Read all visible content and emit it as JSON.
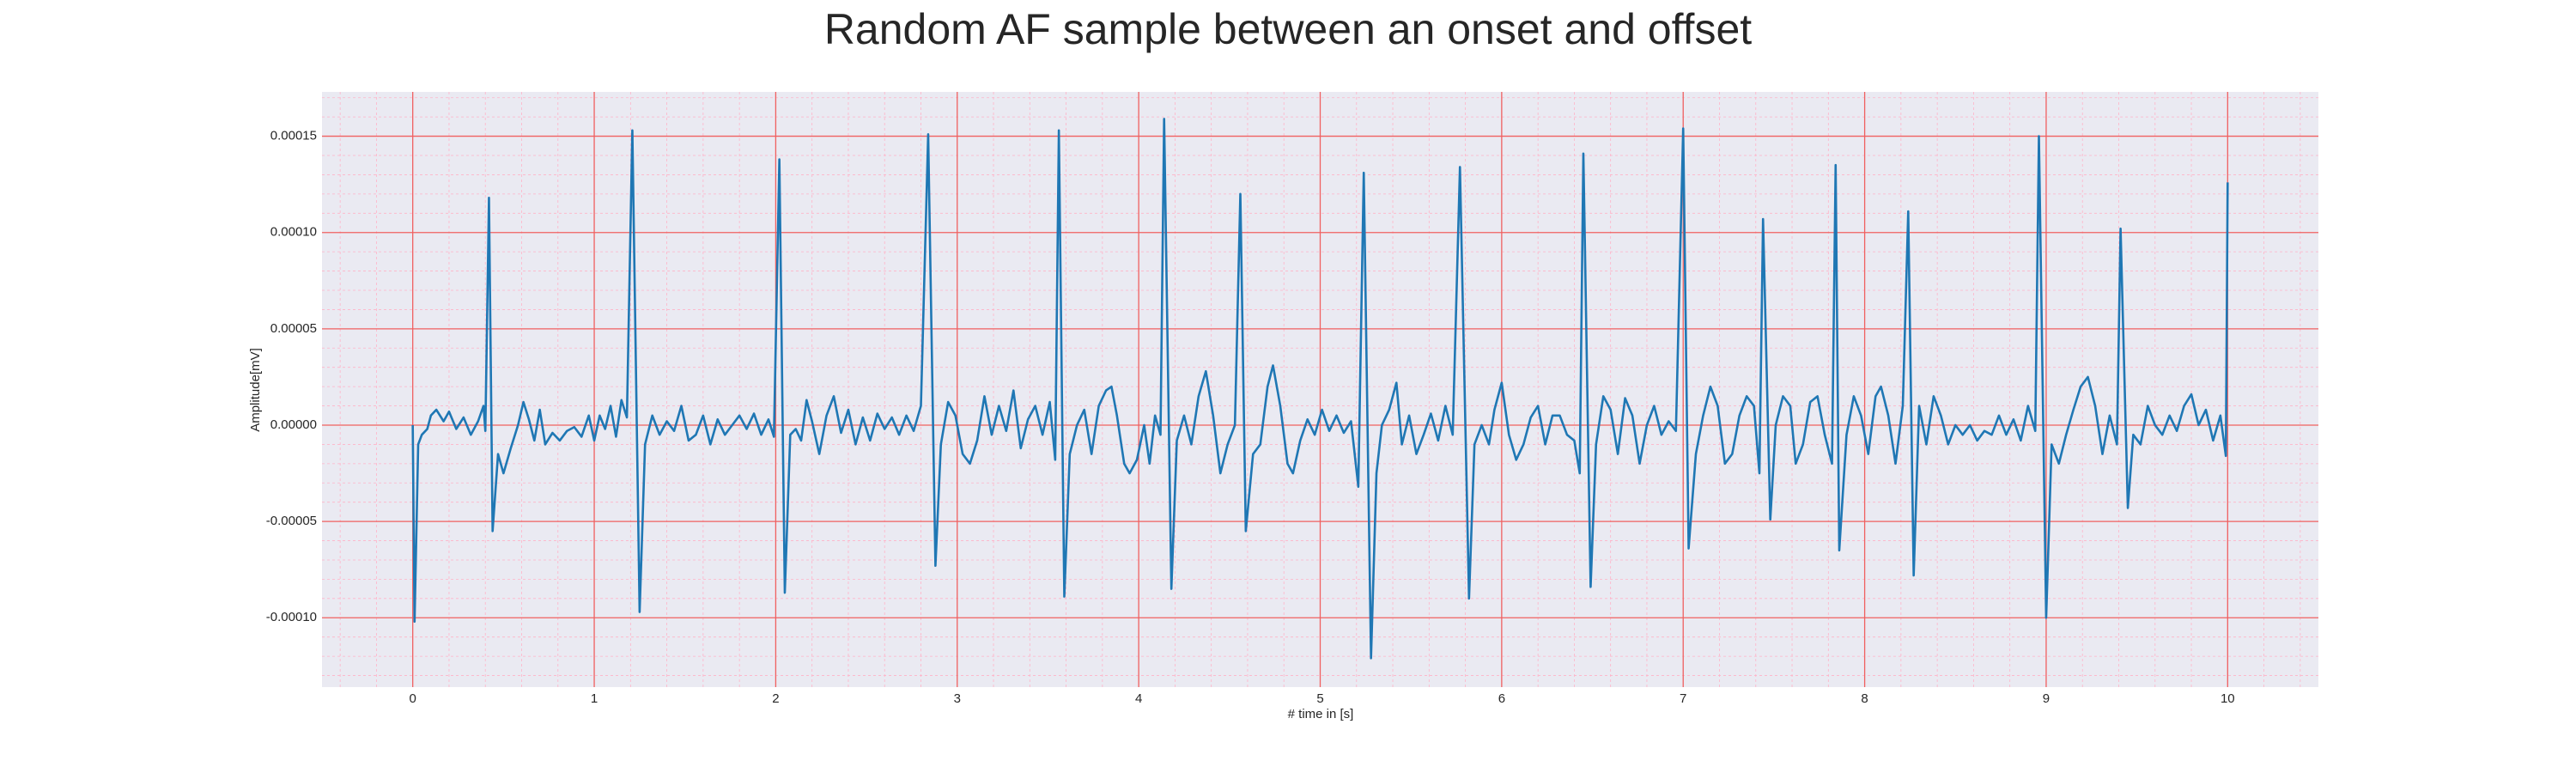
{
  "chart_data": {
    "type": "line",
    "title": "Random AF sample between an onset and offset",
    "xlabel": "# time in [s]",
    "ylabel": "Amplitude[mV]",
    "xlim": [
      -0.5,
      10.5
    ],
    "ylim": [
      -0.000136,
      0.000173
    ],
    "xticks": [
      0,
      1,
      2,
      3,
      4,
      5,
      6,
      7,
      8,
      9,
      10
    ],
    "yticks": [
      {
        "value": -0.0001,
        "label": "-0.00010"
      },
      {
        "value": -5e-05,
        "label": "-0.00005"
      },
      {
        "value": 0,
        "label": "0.00000"
      },
      {
        "value": 5e-05,
        "label": "0.00005"
      },
      {
        "value": 0.0001,
        "label": "0.00010"
      },
      {
        "value": 0.00015,
        "label": "0.00015"
      }
    ],
    "grid": true,
    "minor_grid": true,
    "x": [
      0,
      0.01,
      0.03,
      0.05,
      0.08,
      0.1,
      0.13,
      0.17,
      0.2,
      0.24,
      0.28,
      0.32,
      0.36,
      0.39,
      0.4,
      0.42,
      0.44,
      0.47,
      0.5,
      0.54,
      0.58,
      0.61,
      0.64,
      0.67,
      0.7,
      0.73,
      0.77,
      0.81,
      0.85,
      0.89,
      0.93,
      0.97,
      1.0,
      1.03,
      1.06,
      1.09,
      1.12,
      1.15,
      1.18,
      1.21,
      1.25,
      1.28,
      1.32,
      1.36,
      1.4,
      1.44,
      1.48,
      1.52,
      1.56,
      1.6,
      1.64,
      1.68,
      1.72,
      1.76,
      1.8,
      1.84,
      1.88,
      1.92,
      1.96,
      1.99,
      2.02,
      2.05,
      2.08,
      2.11,
      2.14,
      2.17,
      2.2,
      2.24,
      2.28,
      2.32,
      2.36,
      2.4,
      2.44,
      2.48,
      2.52,
      2.56,
      2.6,
      2.64,
      2.68,
      2.72,
      2.76,
      2.8,
      2.84,
      2.88,
      2.91,
      2.95,
      2.99,
      3.03,
      3.07,
      3.11,
      3.15,
      3.19,
      3.23,
      3.27,
      3.31,
      3.35,
      3.39,
      3.43,
      3.47,
      3.51,
      3.54,
      3.56,
      3.59,
      3.62,
      3.66,
      3.7,
      3.74,
      3.78,
      3.82,
      3.85,
      3.88,
      3.92,
      3.95,
      3.99,
      4.03,
      4.06,
      4.09,
      4.12,
      4.14,
      4.18,
      4.21,
      4.25,
      4.29,
      4.33,
      4.37,
      4.41,
      4.45,
      4.49,
      4.53,
      4.56,
      4.59,
      4.63,
      4.67,
      4.71,
      4.74,
      4.78,
      4.82,
      4.85,
      4.89,
      4.93,
      4.97,
      5.01,
      5.05,
      5.09,
      5.13,
      5.17,
      5.21,
      5.24,
      5.28,
      5.31,
      5.34,
      5.38,
      5.42,
      5.45,
      5.49,
      5.53,
      5.57,
      5.61,
      5.65,
      5.69,
      5.73,
      5.77,
      5.82,
      5.85,
      5.89,
      5.93,
      5.96,
      6.0,
      6.04,
      6.08,
      6.12,
      6.16,
      6.2,
      6.24,
      6.28,
      6.32,
      6.36,
      6.4,
      6.43,
      6.45,
      6.49,
      6.52,
      6.56,
      6.6,
      6.64,
      6.68,
      6.72,
      6.76,
      6.8,
      6.84,
      6.88,
      6.92,
      6.96,
      7.0,
      7.03,
      7.07,
      7.11,
      7.15,
      7.19,
      7.23,
      7.27,
      7.31,
      7.35,
      7.39,
      7.42,
      7.44,
      7.48,
      7.51,
      7.55,
      7.59,
      7.62,
      7.66,
      7.7,
      7.74,
      7.78,
      7.82,
      7.84,
      7.86,
      7.9,
      7.94,
      7.98,
      8.02,
      8.06,
      8.09,
      8.13,
      8.17,
      8.21,
      8.24,
      8.27,
      8.3,
      8.34,
      8.38,
      8.42,
      8.46,
      8.5,
      8.54,
      8.58,
      8.62,
      8.66,
      8.7,
      8.74,
      8.78,
      8.82,
      8.86,
      8.9,
      8.94,
      8.96,
      9.0,
      9.03,
      9.07,
      9.11,
      9.15,
      9.19,
      9.23,
      9.27,
      9.31,
      9.35,
      9.39,
      9.41,
      9.45,
      9.48,
      9.52,
      9.56,
      9.6,
      9.64,
      9.68,
      9.72,
      9.76,
      9.8,
      9.84,
      9.88,
      9.92,
      9.96,
      9.99,
      10.0
    ],
    "series": [
      {
        "name": "signal",
        "color": "#1f77b4",
        "values": [
          0,
          -0.000102,
          -1e-05,
          -5e-06,
          -2e-06,
          5e-06,
          8e-06,
          2e-06,
          7e-06,
          -2e-06,
          4e-06,
          -5e-06,
          2e-06,
          1e-05,
          -3e-06,
          0.000118,
          -5.5e-05,
          -1.5e-05,
          -2.5e-05,
          -1.2e-05,
          0,
          1.2e-05,
          3e-06,
          -8e-06,
          8e-06,
          -1e-05,
          -4e-06,
          -8e-06,
          -3e-06,
          -1e-06,
          -6e-06,
          5e-06,
          -8e-06,
          5e-06,
          -2e-06,
          1e-05,
          -6e-06,
          1.3e-05,
          4e-06,
          0.000153,
          -9.7e-05,
          -1e-05,
          5e-06,
          -5e-06,
          2e-06,
          -3e-06,
          1e-05,
          -8e-06,
          -5e-06,
          5e-06,
          -1e-05,
          3e-06,
          -5e-06,
          0,
          5e-06,
          -2e-06,
          6e-06,
          -5e-06,
          3e-06,
          -6e-06,
          0.000138,
          -8.7e-05,
          -5e-06,
          -2e-06,
          -8e-06,
          1.3e-05,
          2e-06,
          -1.5e-05,
          5e-06,
          1.5e-05,
          -4e-06,
          8e-06,
          -1e-05,
          4e-06,
          -8e-06,
          6e-06,
          -2e-06,
          4e-06,
          -5e-06,
          5e-06,
          -3e-06,
          1e-05,
          0.000151,
          -7.3e-05,
          -1e-05,
          1.2e-05,
          5e-06,
          -1.5e-05,
          -2e-05,
          -8e-06,
          1.5e-05,
          -5e-06,
          1e-05,
          -3e-06,
          1.8e-05,
          -1.2e-05,
          3e-06,
          1e-05,
          -5e-06,
          1.2e-05,
          -1.8e-05,
          0.000153,
          -8.9e-05,
          -1.5e-05,
          0,
          8e-06,
          -1.5e-05,
          1e-05,
          1.8e-05,
          2e-05,
          5e-06,
          -2e-05,
          -2.5e-05,
          -1.8e-05,
          0,
          -2e-05,
          5e-06,
          -5e-06,
          0.000159,
          -8.5e-05,
          -8e-06,
          5e-06,
          -1e-05,
          1.5e-05,
          2.8e-05,
          5e-06,
          -2.5e-05,
          -1e-05,
          0,
          0.00012,
          -5.5e-05,
          -1.5e-05,
          -1e-05,
          2e-05,
          3.1e-05,
          1e-05,
          -2e-05,
          -2.5e-05,
          -8e-06,
          3e-06,
          -5e-06,
          8e-06,
          -3e-06,
          5e-06,
          -4e-06,
          2e-06,
          -3.2e-05,
          0.000131,
          -0.000121,
          -2.5e-05,
          0,
          8e-06,
          2.2e-05,
          -1e-05,
          5e-06,
          -1.5e-05,
          -5e-06,
          6e-06,
          -8e-06,
          1e-05,
          -5e-06,
          0.000134,
          -9e-05,
          -1e-05,
          0,
          -1e-05,
          8e-06,
          2.2e-05,
          -5e-06,
          -1.8e-05,
          -1e-05,
          4e-06,
          1e-05,
          -1e-05,
          5e-06,
          5e-06,
          -5e-06,
          -8e-06,
          -2.5e-05,
          0.000141,
          -8.4e-05,
          -1e-05,
          1.5e-05,
          8e-06,
          -1.5e-05,
          1.4e-05,
          5e-06,
          -2e-05,
          0,
          1e-05,
          -5e-06,
          2e-06,
          -3e-06,
          0.000154,
          -6.4e-05,
          -1.5e-05,
          5e-06,
          2e-05,
          1e-05,
          -2e-05,
          -1.5e-05,
          5e-06,
          1.5e-05,
          1e-05,
          -2.5e-05,
          0.000107,
          -4.9e-05,
          0,
          1.5e-05,
          1e-05,
          -2e-05,
          -1e-05,
          1.2e-05,
          1.5e-05,
          -5e-06,
          -2e-05,
          0.000135,
          -6.5e-05,
          -5e-06,
          1.5e-05,
          5e-06,
          -1.5e-05,
          1.5e-05,
          2e-05,
          5e-06,
          -2e-05,
          1e-05,
          0.000111,
          -7.8e-05,
          1e-05,
          -1e-05,
          1.5e-05,
          5e-06,
          -1e-05,
          0,
          -5e-06,
          0,
          -8e-06,
          -3e-06,
          -5e-06,
          5e-06,
          -5e-06,
          3e-06,
          -8e-06,
          1e-05,
          -3e-06,
          0.00015,
          -0.0001,
          -1e-05,
          -2e-05,
          -5e-06,
          8e-06,
          2e-05,
          2.5e-05,
          1e-05,
          -1.5e-05,
          5e-06,
          -1e-05,
          0.000102,
          -4.3e-05,
          -5e-06,
          -1e-05,
          1e-05,
          0,
          -5e-06,
          5e-06,
          -3e-06,
          1e-05,
          1.6e-05,
          0,
          8e-06,
          -8e-06,
          5e-06,
          -1.6e-05,
          0.000126
        ]
      }
    ]
  }
}
